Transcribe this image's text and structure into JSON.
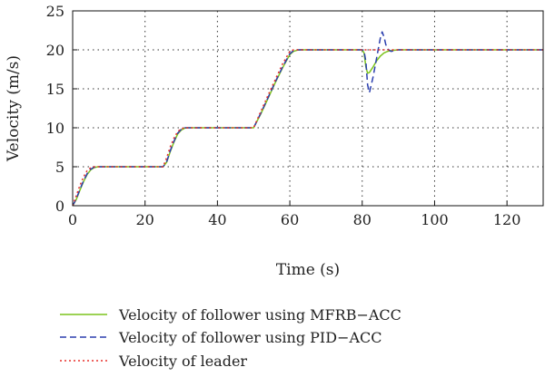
{
  "chart_data": {
    "type": "line",
    "title": "",
    "xlabel": "Time (s)",
    "ylabel": "Velocity (m/s)",
    "xlim": [
      0,
      130
    ],
    "ylim": [
      0,
      25
    ],
    "xticks": [
      "0",
      "20",
      "40",
      "60",
      "80",
      "100",
      "120"
    ],
    "yticks": [
      "0",
      "5",
      "10",
      "15",
      "20",
      "25"
    ],
    "grid": true,
    "legend_position": "bottom",
    "series": [
      {
        "name": "Velocity of follower using MFRB−ACC",
        "color": "#7cc31c",
        "style": "solid",
        "x": [
          0,
          1,
          2,
          3,
          4,
          5,
          6,
          7,
          8,
          25,
          26,
          27,
          28,
          29,
          30,
          31,
          32,
          33,
          50,
          52,
          54,
          56,
          58,
          60,
          61,
          62,
          63,
          64,
          80,
          80.5,
          81,
          81.5,
          82,
          83,
          84,
          85,
          86,
          87,
          88,
          89,
          90,
          130
        ],
        "y": [
          0,
          0.8,
          2.0,
          3.1,
          4.0,
          4.6,
          4.9,
          5.0,
          5.0,
          5.0,
          5.6,
          7.0,
          8.2,
          9.2,
          9.7,
          9.95,
          10.0,
          10.0,
          10.0,
          11.8,
          13.8,
          15.8,
          17.7,
          19.4,
          19.8,
          19.95,
          20.0,
          20.0,
          20.0,
          19.6,
          17.8,
          17.0,
          17.1,
          17.8,
          18.6,
          19.2,
          19.6,
          19.8,
          19.9,
          19.95,
          20.0,
          20.0
        ]
      },
      {
        "name": "Velocity of follower using PID−ACC",
        "color": "#2b3fae",
        "style": "dashed",
        "x": [
          0,
          1,
          2,
          3,
          4,
          5,
          6,
          7,
          8,
          25,
          26,
          27,
          28,
          29,
          30,
          31,
          32,
          33,
          50,
          52,
          54,
          56,
          58,
          60,
          61,
          62,
          63,
          64,
          80,
          80.5,
          81,
          81.5,
          82,
          83,
          84,
          85,
          85.5,
          86,
          86.5,
          87,
          88,
          89,
          90,
          130
        ],
        "y": [
          0,
          0.9,
          2.1,
          3.2,
          4.1,
          4.7,
          4.95,
          5.0,
          5.0,
          5.0,
          5.7,
          7.1,
          8.3,
          9.3,
          9.8,
          10.0,
          10.0,
          10.0,
          10.0,
          11.9,
          13.9,
          15.9,
          17.8,
          19.5,
          19.9,
          20.0,
          20.0,
          20.0,
          20.0,
          19.8,
          18.5,
          15.5,
          14.5,
          16.5,
          19.0,
          21.5,
          22.3,
          21.7,
          20.7,
          20.1,
          19.8,
          19.9,
          20.0,
          20.0
        ]
      },
      {
        "name": "Velocity of leader",
        "color": "#e8312b",
        "style": "dotted",
        "x": [
          0,
          1,
          2,
          3,
          4,
          5,
          6,
          7,
          25,
          26,
          27,
          28,
          29,
          30,
          31,
          32,
          50,
          52,
          54,
          56,
          58,
          60,
          61,
          62,
          130
        ],
        "y": [
          0,
          1.3,
          2.6,
          3.7,
          4.5,
          4.9,
          5.0,
          5.0,
          5.0,
          6.2,
          7.6,
          8.7,
          9.5,
          9.9,
          10.0,
          10.0,
          10.0,
          12.1,
          14.2,
          16.2,
          18.2,
          19.8,
          20.0,
          20.0,
          20.0
        ]
      }
    ]
  }
}
